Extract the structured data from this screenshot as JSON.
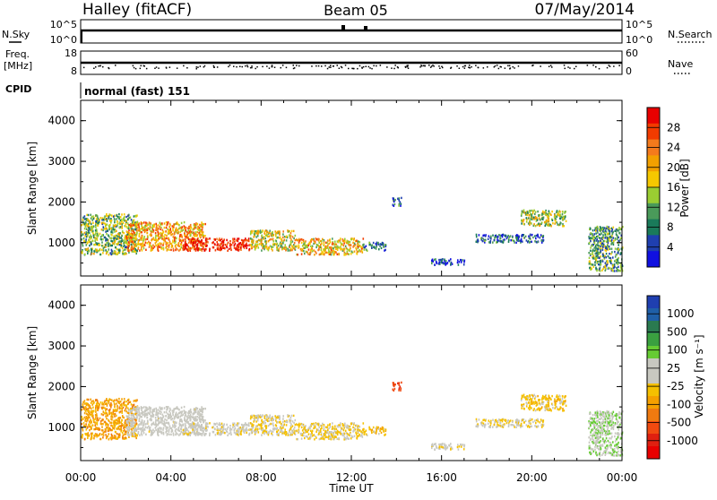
{
  "header": {
    "station": "Halley (fitACF)",
    "beam": "Beam 05",
    "date": "07/May/2014"
  },
  "nsky_panel": {
    "left_label": "N.Sky",
    "left_ticks": [
      "10^5",
      "10^0"
    ],
    "right_label": "N.Search",
    "right_ticks": [
      "10^5",
      "10^0"
    ]
  },
  "freq_panel": {
    "left_label_line1": "Freq.",
    "left_label_line2": "[MHz]",
    "left_ticks": [
      "18",
      "8"
    ],
    "right_label": "Nave",
    "right_ticks": [
      "60",
      "0"
    ]
  },
  "cpid": {
    "label": "CPID",
    "mode": "normal (fast) 151"
  },
  "power_panel": {
    "ylabel": "Slant Range [km]",
    "yticks": [
      "4000",
      "3000",
      "2000",
      "1000"
    ],
    "colorbar_label": "Power [dB]",
    "colorbar_ticks": [
      "28",
      "24",
      "20",
      "16",
      "12",
      "8",
      "4"
    ],
    "colorbar_colors": [
      "#e80000",
      "#f23b00",
      "#f47a1c",
      "#f2a000",
      "#f5c800",
      "#9acd32",
      "#4a9a5a",
      "#1a7a5a",
      "#1f3fb0",
      "#1010e0"
    ]
  },
  "velocity_panel": {
    "ylabel": "Slant Range [km]",
    "yticks": [
      "4000",
      "3000",
      "2000",
      "1000"
    ],
    "colorbar_label": "Velocity [m s⁻¹]",
    "colorbar_ticks": [
      "1000",
      "500",
      "100",
      "25",
      "-25",
      "-100",
      "-500",
      "-1000"
    ],
    "colorbar_colors": [
      "#1f3fb0",
      "#1f5fa8",
      "#2a7a50",
      "#3aa040",
      "#66cc33",
      "#c8c8c0",
      "#c8c8c0",
      "#f5c000",
      "#f5a000",
      "#f07a10",
      "#f04a10",
      "#e02010",
      "#e80000"
    ]
  },
  "xaxis": {
    "ticks": [
      "00:00",
      "04:00",
      "08:00",
      "12:00",
      "16:00",
      "20:00",
      "00:00"
    ],
    "label": "Time UT"
  },
  "chart_data": {
    "type": "heatmap",
    "x_range_hours": [
      0,
      24
    ],
    "y_range_km": [
      180,
      4500
    ],
    "power_range_db": [
      0,
      30
    ],
    "velocity_range": [
      -1000,
      1000
    ],
    "scatter_regions": [
      {
        "t": [
          0.0,
          2.5
        ],
        "r": [
          700,
          1700
        ],
        "power": 12,
        "velocity": -300
      },
      {
        "t": [
          2.0,
          5.5
        ],
        "r": [
          800,
          1500
        ],
        "power": 20,
        "velocity": 50
      },
      {
        "t": [
          4.5,
          7.5
        ],
        "r": [
          800,
          1100
        ],
        "power": 28,
        "velocity": 0
      },
      {
        "t": [
          7.5,
          9.5
        ],
        "r": [
          800,
          1300
        ],
        "power": 16,
        "velocity": -50
      },
      {
        "t": [
          9.5,
          12.5
        ],
        "r": [
          700,
          1100
        ],
        "power": 18,
        "velocity": -100
      },
      {
        "t": [
          12.5,
          13.5
        ],
        "r": [
          800,
          1000
        ],
        "power": 8,
        "velocity": -150
      },
      {
        "t": [
          13.8,
          14.2
        ],
        "r": [
          1900,
          2100
        ],
        "power": 6,
        "velocity": -600
      },
      {
        "t": [
          15.5,
          17.0
        ],
        "r": [
          450,
          600
        ],
        "power": 4,
        "velocity": 0
      },
      {
        "t": [
          17.5,
          20.5
        ],
        "r": [
          1000,
          1200
        ],
        "power": 6,
        "velocity": -80
      },
      {
        "t": [
          19.5,
          21.5
        ],
        "r": [
          1400,
          1800
        ],
        "power": 14,
        "velocity": -150
      },
      {
        "t": [
          22.5,
          24.0
        ],
        "r": [
          300,
          1400
        ],
        "power": 10,
        "velocity": 200
      }
    ]
  }
}
